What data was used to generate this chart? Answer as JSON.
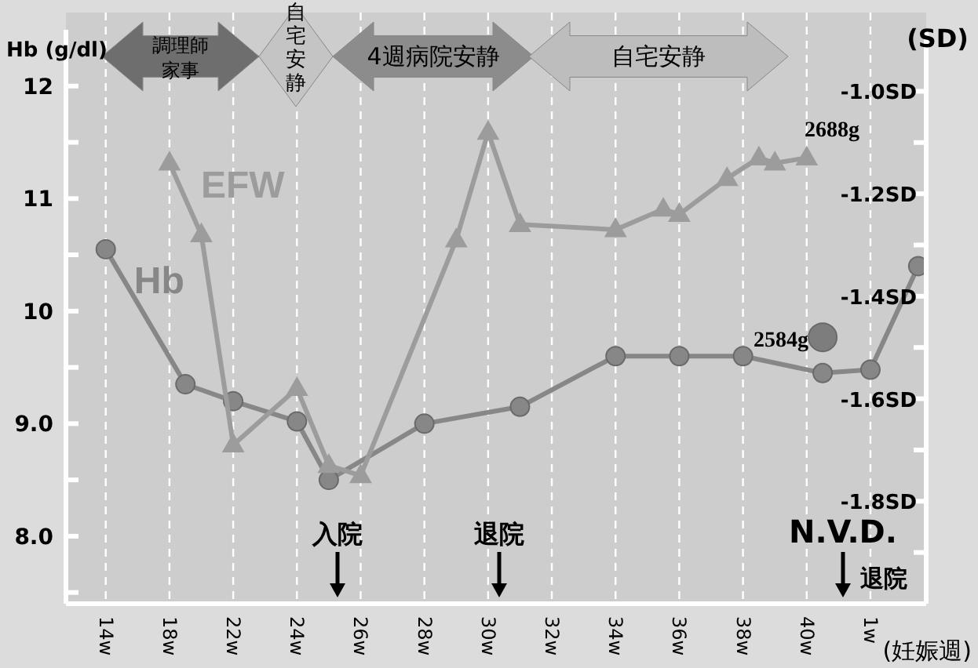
{
  "chart_data": {
    "type": "line",
    "xlabel": "(妊娠週)",
    "ylabel": "Hb (g/dl)",
    "y2label": "(SD)",
    "categories": [
      null,
      null,
      "14w",
      null,
      null,
      null,
      "18w",
      null,
      null,
      null,
      "22w",
      null,
      null,
      null,
      "24w",
      null,
      null,
      null,
      "26w",
      null,
      null,
      null,
      "28w",
      null,
      null,
      null,
      "30w",
      null,
      null,
      null,
      "32w",
      null,
      null,
      null,
      "34w",
      null,
      null,
      null,
      "36w",
      null,
      null,
      null,
      "38w",
      null,
      null,
      null,
      "40w",
      null,
      null,
      null,
      "1w",
      null,
      null,
      null
    ],
    "ylim": [
      7.4,
      12.5
    ],
    "yticks": [
      {
        "value": 7.5,
        "label": null
      },
      {
        "value": 8,
        "label": "8.0"
      },
      {
        "value": 8.5,
        "label": null
      },
      {
        "value": 9,
        "label": "9.0"
      },
      {
        "value": 9.5,
        "label": null
      },
      {
        "value": 10,
        "label": "10"
      },
      {
        "value": 10.5,
        "label": null
      },
      {
        "value": 11,
        "label": "11"
      },
      {
        "value": 11.5,
        "label": null
      },
      {
        "value": 12,
        "label": "12"
      }
    ],
    "y2lim": [
      -2.0,
      -0.88
    ],
    "y2ticks": [
      {
        "value": -1.9,
        "label": null
      },
      {
        "value": -1.8,
        "label": "-1.8SD"
      },
      {
        "value": -1.7,
        "label": null
      },
      {
        "value": -1.6,
        "label": "-1.6SD"
      },
      {
        "value": -1.5,
        "label": null
      },
      {
        "value": -1.4,
        "label": "-1.4SD"
      },
      {
        "value": -1.3,
        "label": null
      },
      {
        "value": -1.2,
        "label": "-1.2SD"
      },
      {
        "value": -1.1,
        "label": null
      },
      {
        "value": -1.0,
        "label": "-1.0SD"
      }
    ],
    "grid": "x",
    "series": [
      {
        "name": "Hb",
        "marker": "circle",
        "color": "#878787",
        "values": [
          null,
          null,
          10.55,
          null,
          null,
          null,
          null,
          9.35,
          null,
          null,
          9.2,
          null,
          null,
          null,
          9.02,
          null,
          8.5,
          null,
          null,
          null,
          null,
          null,
          9.0,
          null,
          null,
          null,
          null,
          null,
          9.15,
          null,
          null,
          null,
          null,
          null,
          9.6,
          null,
          null,
          null,
          9.6,
          null,
          null,
          null,
          9.6,
          null,
          null,
          null,
          null,
          9.45,
          null,
          null,
          9.48,
          null,
          null,
          10.4
        ]
      },
      {
        "name": "EFW",
        "marker": "triangle",
        "axis": "y2",
        "color": "#9c9c9c",
        "values": [
          null,
          null,
          null,
          null,
          null,
          null,
          -1.14,
          null,
          -1.28,
          null,
          -1.69,
          null,
          null,
          null,
          -1.58,
          null,
          -1.73,
          null,
          -1.75,
          null,
          null,
          null,
          null,
          null,
          -1.29,
          null,
          -1.08,
          null,
          -1.26,
          null,
          null,
          null,
          null,
          null,
          -1.27,
          null,
          null,
          -1.23,
          -1.24,
          null,
          null,
          -1.17,
          null,
          -1.13,
          -1.14,
          null,
          -1.13,
          null,
          null,
          null,
          null,
          null,
          null,
          null
        ]
      },
      {
        "type": "scatter",
        "marker": "circle",
        "axis": "y2",
        "color": "#7d7d7d",
        "values": [
          null,
          null,
          null,
          null,
          null,
          null,
          null,
          null,
          null,
          null,
          null,
          null,
          null,
          null,
          null,
          null,
          null,
          null,
          null,
          null,
          null,
          null,
          null,
          null,
          null,
          null,
          null,
          null,
          null,
          null,
          null,
          null,
          null,
          null,
          null,
          null,
          null,
          null,
          null,
          null,
          null,
          null,
          null,
          null,
          null,
          null,
          null,
          -1.48,
          null,
          null,
          null,
          null,
          null,
          null
        ]
      }
    ],
    "annotations": [
      "調理師家事",
      "自宅安静",
      "4週病院安静",
      "自宅安静",
      "入院",
      "退院",
      "N.V.D.",
      "退院",
      "2688g",
      "2584g"
    ]
  }
}
